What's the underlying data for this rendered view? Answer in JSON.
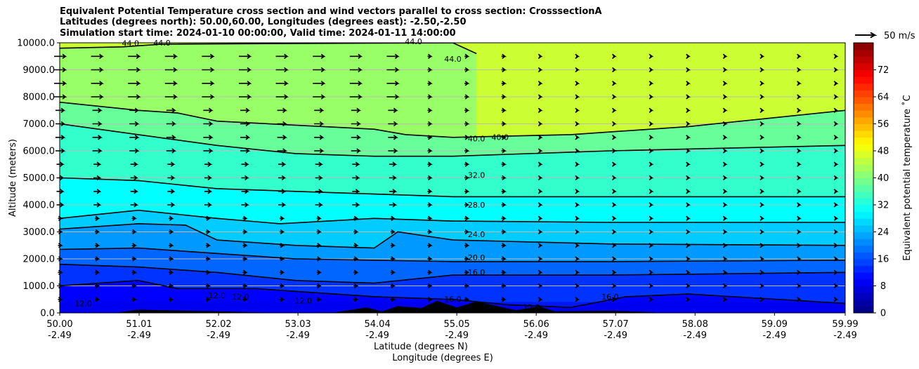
{
  "titles": [
    "Equivalent Potential Temperature cross section and wind vectors parallel to cross section: CrosssectionA",
    "Latitudes (degrees north): 50.00,60.00, Longitudes (degrees east): -2.50,-2.50",
    "Simulation start time: 2024-01-10 00:00:00, Valid time: 2024-01-11 14:00:00"
  ],
  "chart_data": {
    "type": "heatmap",
    "title": "Equivalent Potential Temperature cross section and wind vectors parallel to cross section: CrosssectionA",
    "xlabel": "Latitude (degrees N)",
    "xlabel2": "Longitude (degrees E)",
    "ylabel": "Altitude (meters)",
    "colorbar_label": "Equivalent potential temperature ˚C",
    "colorbar_ticks": [
      "0",
      "8",
      "16",
      "24",
      "32",
      "40",
      "48",
      "56",
      "64",
      "72"
    ],
    "colorbar_range": [
      0,
      80
    ],
    "ylim": [
      0,
      10000
    ],
    "y_ticks": [
      "0.0",
      "1000.0",
      "2000.0",
      "3000.0",
      "4000.0",
      "5000.0",
      "6000.0",
      "7000.0",
      "8000.0",
      "9000.0",
      "10000.0"
    ],
    "x_ticks_lat": [
      "50.00",
      "51.01",
      "52.02",
      "53.03",
      "54.04",
      "55.05",
      "56.06",
      "57.07",
      "58.08",
      "59.09",
      "59.99"
    ],
    "x_ticks_lon": [
      "-2.49",
      "-2.49",
      "-2.49",
      "-2.49",
      "-2.49",
      "-2.49",
      "-2.49",
      "-2.49",
      "-2.49",
      "-2.49",
      "-2.49"
    ],
    "quiver_key": "50 m/s",
    "contour_labels": [
      "44.0",
      "44.0",
      "44.0",
      "44.0",
      "40.0",
      "40.0",
      "32.0",
      "28.0",
      "24.0",
      "20.0",
      "16.0",
      "12.0",
      "12.0",
      "12.0",
      "12.0",
      "16.0",
      "16.0",
      "12.0"
    ],
    "isotherms": [
      {
        "level": 44,
        "lat": [
          50.0,
          50.8,
          51.3,
          55.0,
          55.3
        ],
        "alt": [
          9800,
          9850,
          9950,
          10000,
          9600
        ]
      },
      {
        "level": 40,
        "lat": [
          50.0,
          51.0,
          51.5,
          52.0,
          54.0,
          54.4,
          55.0,
          56.5,
          58.0,
          59.99
        ],
        "alt": [
          7800,
          7500,
          7400,
          7100,
          6800,
          6600,
          6500,
          6600,
          6900,
          7500
        ]
      },
      {
        "level": 36,
        "lat": [
          50.0,
          51.0,
          52.0,
          53.0,
          54.0,
          55.0,
          57.0,
          59.99
        ],
        "alt": [
          7000,
          6600,
          6200,
          5900,
          5800,
          5800,
          6000,
          6200
        ]
      },
      {
        "level": 32,
        "lat": [
          50.0,
          51.0,
          52.0,
          53.0,
          54.0,
          55.0,
          57.0,
          59.99
        ],
        "alt": [
          5000,
          4900,
          4600,
          4500,
          4400,
          4300,
          4300,
          4300
        ]
      },
      {
        "level": 28,
        "lat": [
          50.0,
          51.0,
          52.0,
          52.8,
          54.0,
          55.0,
          57.0,
          59.99
        ],
        "alt": [
          3500,
          3800,
          3500,
          3300,
          3500,
          3400,
          3350,
          3350
        ]
      },
      {
        "level": 24,
        "lat": [
          50.0,
          51.0,
          51.6,
          52.0,
          53.0,
          54.0,
          54.3,
          55.0,
          57.0,
          59.99
        ],
        "alt": [
          3100,
          3300,
          3250,
          2700,
          2500,
          2400,
          3000,
          2700,
          2550,
          2500
        ]
      },
      {
        "level": 20,
        "lat": [
          50.0,
          51.0,
          52.0,
          53.0,
          54.0,
          55.0,
          57.0,
          59.99
        ],
        "alt": [
          2350,
          2400,
          2200,
          2000,
          1950,
          1900,
          1900,
          1950
        ]
      },
      {
        "level": 16,
        "lat": [
          50.0,
          51.0,
          52.0,
          53.0,
          54.0,
          55.0,
          57.0,
          59.99
        ],
        "alt": [
          1800,
          1700,
          1500,
          1200,
          1100,
          1400,
          1400,
          1500
        ]
      },
      {
        "level": 12,
        "lat": [
          50.0,
          51.0,
          51.5,
          52.5,
          53.5,
          54.0,
          55.0,
          55.7,
          56.5,
          57.2,
          58.0,
          59.99
        ],
        "alt": [
          1000,
          1200,
          900,
          900,
          700,
          600,
          500,
          300,
          200,
          600,
          700,
          350
        ]
      }
    ],
    "grid": true
  },
  "colors": {
    "axes_bg": "#4ad3ff",
    "terrain": "#000000",
    "contour": "#000000",
    "grid": "#bbbbbb"
  }
}
